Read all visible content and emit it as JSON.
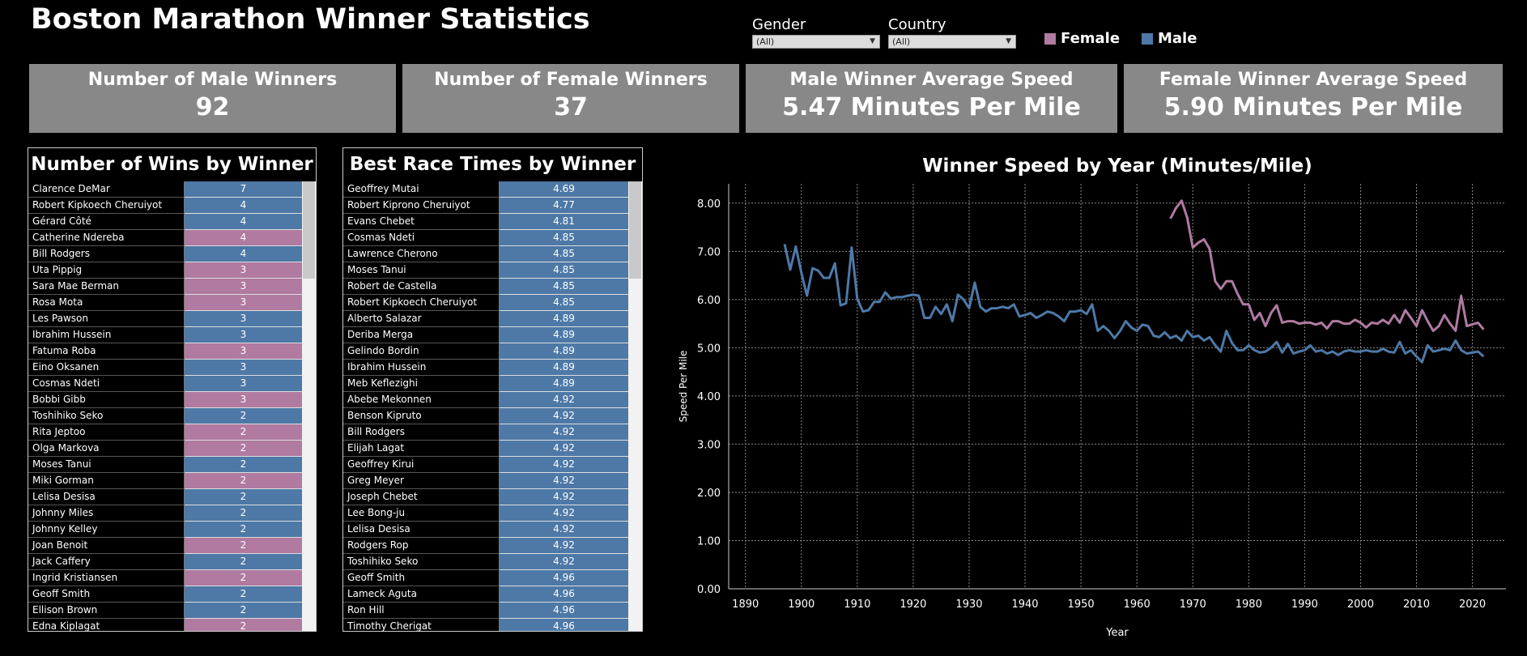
{
  "title": "Boston Marathon Winner Statistics",
  "filters": [
    {
      "label": "Gender",
      "value": "(All)"
    },
    {
      "label": "Country",
      "value": "(All)"
    }
  ],
  "legend": [
    {
      "label": "Female",
      "color": "#b07aa1"
    },
    {
      "label": "Male",
      "color": "#4e79a7"
    }
  ],
  "kpis": [
    {
      "title": "Number of Male Winners",
      "value": "92"
    },
    {
      "title": "Number of Female Winners",
      "value": "37"
    },
    {
      "title": "Male Winner Average Speed",
      "value": "5.47 Minutes Per Mile"
    },
    {
      "title": "Female Winner Average Speed",
      "value": "5.90 Minutes Per Mile"
    }
  ],
  "colors": {
    "male": "#4e79a7",
    "female": "#b07aa1",
    "kpi_bg": "#888888"
  },
  "wins_table": {
    "title": "Number of Wins by Winner",
    "rows": [
      {
        "name": "Clarence DeMar",
        "value": "7",
        "gender": "male"
      },
      {
        "name": "Robert Kipkoech Cheruiyot",
        "value": "4",
        "gender": "male"
      },
      {
        "name": "Gérard Côté",
        "value": "4",
        "gender": "male"
      },
      {
        "name": "Catherine Ndereba",
        "value": "4",
        "gender": "female"
      },
      {
        "name": "Bill Rodgers",
        "value": "4",
        "gender": "male"
      },
      {
        "name": "Uta Pippig",
        "value": "3",
        "gender": "female"
      },
      {
        "name": "Sara Mae Berman",
        "value": "3",
        "gender": "female"
      },
      {
        "name": "Rosa Mota",
        "value": "3",
        "gender": "female"
      },
      {
        "name": "Les Pawson",
        "value": "3",
        "gender": "male"
      },
      {
        "name": "Ibrahim Hussein",
        "value": "3",
        "gender": "male"
      },
      {
        "name": "Fatuma Roba",
        "value": "3",
        "gender": "female"
      },
      {
        "name": "Eino Oksanen",
        "value": "3",
        "gender": "male"
      },
      {
        "name": "Cosmas Ndeti",
        "value": "3",
        "gender": "male"
      },
      {
        "name": "Bobbi Gibb",
        "value": "3",
        "gender": "female"
      },
      {
        "name": "Toshihiko Seko",
        "value": "2",
        "gender": "male"
      },
      {
        "name": "Rita Jeptoo",
        "value": "2",
        "gender": "female"
      },
      {
        "name": "Olga Markova",
        "value": "2",
        "gender": "female"
      },
      {
        "name": "Moses Tanui",
        "value": "2",
        "gender": "male"
      },
      {
        "name": "Miki Gorman",
        "value": "2",
        "gender": "female"
      },
      {
        "name": "Lelisa Desisa",
        "value": "2",
        "gender": "male"
      },
      {
        "name": "Johnny Miles",
        "value": "2",
        "gender": "male"
      },
      {
        "name": "Johnny Kelley",
        "value": "2",
        "gender": "male"
      },
      {
        "name": "Joan Benoit",
        "value": "2",
        "gender": "female"
      },
      {
        "name": "Jack Caffery",
        "value": "2",
        "gender": "male"
      },
      {
        "name": "Ingrid Kristiansen",
        "value": "2",
        "gender": "female"
      },
      {
        "name": "Geoff Smith",
        "value": "2",
        "gender": "male"
      },
      {
        "name": "Ellison Brown",
        "value": "2",
        "gender": "male"
      },
      {
        "name": "Edna Kiplagat",
        "value": "2",
        "gender": "female"
      }
    ]
  },
  "times_table": {
    "title": "Best Race Times by Winner",
    "rows": [
      {
        "name": "Geoffrey Mutai",
        "value": "4.69"
      },
      {
        "name": "Robert Kiprono Cheruiyot",
        "value": "4.77"
      },
      {
        "name": "Evans Chebet",
        "value": "4.81"
      },
      {
        "name": "Cosmas Ndeti",
        "value": "4.85"
      },
      {
        "name": "Lawrence Cherono",
        "value": "4.85"
      },
      {
        "name": "Moses Tanui",
        "value": "4.85"
      },
      {
        "name": "Robert de Castella",
        "value": "4.85"
      },
      {
        "name": "Robert Kipkoech Cheruiyot",
        "value": "4.85"
      },
      {
        "name": "Alberto Salazar",
        "value": "4.89"
      },
      {
        "name": "Deriba Merga",
        "value": "4.89"
      },
      {
        "name": "Gelindo Bordin",
        "value": "4.89"
      },
      {
        "name": "Ibrahim Hussein",
        "value": "4.89"
      },
      {
        "name": "Meb Keflezighi",
        "value": "4.89"
      },
      {
        "name": "Abebe Mekonnen",
        "value": "4.92"
      },
      {
        "name": "Benson Kipruto",
        "value": "4.92"
      },
      {
        "name": "Bill Rodgers",
        "value": "4.92"
      },
      {
        "name": "Elijah Lagat",
        "value": "4.92"
      },
      {
        "name": "Geoffrey Kirui",
        "value": "4.92"
      },
      {
        "name": "Greg Meyer",
        "value": "4.92"
      },
      {
        "name": "Joseph Chebet",
        "value": "4.92"
      },
      {
        "name": "Lee Bong-ju",
        "value": "4.92"
      },
      {
        "name": "Lelisa Desisa",
        "value": "4.92"
      },
      {
        "name": "Rodgers Rop",
        "value": "4.92"
      },
      {
        "name": "Toshihiko Seko",
        "value": "4.92"
      },
      {
        "name": "Geoff Smith",
        "value": "4.96"
      },
      {
        "name": "Lameck Aguta",
        "value": "4.96"
      },
      {
        "name": "Ron Hill",
        "value": "4.96"
      },
      {
        "name": "Timothy Cherigat",
        "value": "4.96"
      }
    ]
  },
  "chart_data": {
    "type": "line",
    "title": "Winner Speed by Year (Minutes/Mile)",
    "xlabel": "Year",
    "ylabel": "Speed Per Mile",
    "xlim": [
      1887,
      2026
    ],
    "ylim": [
      0,
      8.4
    ],
    "x_ticks": [
      "1890",
      "1900",
      "1910",
      "1920",
      "1930",
      "1940",
      "1950",
      "1960",
      "1970",
      "1980",
      "1990",
      "2000",
      "2010",
      "2020"
    ],
    "y_ticks": [
      "0.00",
      "1.00",
      "2.00",
      "3.00",
      "4.00",
      "5.00",
      "6.00",
      "7.00",
      "8.00"
    ],
    "grid": true,
    "series": [
      {
        "name": "Male",
        "color": "#4e79a7",
        "x": [
          1897,
          1898,
          1899,
          1900,
          1901,
          1902,
          1903,
          1904,
          1905,
          1906,
          1907,
          1908,
          1909,
          1910,
          1911,
          1912,
          1913,
          1914,
          1915,
          1916,
          1917,
          1918,
          1919,
          1920,
          1921,
          1922,
          1923,
          1924,
          1925,
          1926,
          1927,
          1928,
          1929,
          1930,
          1931,
          1932,
          1933,
          1934,
          1935,
          1936,
          1937,
          1938,
          1939,
          1940,
          1941,
          1942,
          1943,
          1944,
          1945,
          1946,
          1947,
          1948,
          1949,
          1950,
          1951,
          1952,
          1953,
          1954,
          1955,
          1956,
          1957,
          1958,
          1959,
          1960,
          1961,
          1962,
          1963,
          1964,
          1965,
          1966,
          1967,
          1968,
          1969,
          1970,
          1971,
          1972,
          1973,
          1974,
          1975,
          1976,
          1977,
          1978,
          1979,
          1980,
          1981,
          1982,
          1983,
          1984,
          1985,
          1986,
          1987,
          1988,
          1989,
          1990,
          1991,
          1992,
          1993,
          1994,
          1995,
          1996,
          1997,
          1998,
          1999,
          2000,
          2001,
          2002,
          2003,
          2004,
          2005,
          2006,
          2007,
          2008,
          2009,
          2010,
          2011,
          2012,
          2013,
          2014,
          2015,
          2016,
          2017,
          2018,
          2019,
          2021,
          2022
        ],
        "y": [
          7.15,
          6.62,
          7.1,
          6.55,
          6.08,
          6.65,
          6.6,
          6.45,
          6.45,
          6.75,
          5.88,
          5.92,
          7.08,
          6.02,
          5.75,
          5.78,
          5.95,
          5.95,
          6.15,
          6.02,
          6.05,
          6.05,
          6.08,
          6.1,
          6.08,
          5.62,
          5.62,
          5.85,
          5.7,
          5.9,
          5.55,
          6.1,
          6.0,
          5.82,
          6.35,
          5.85,
          5.75,
          5.82,
          5.82,
          5.85,
          5.82,
          5.9,
          5.65,
          5.68,
          5.72,
          5.62,
          5.68,
          5.75,
          5.72,
          5.65,
          5.55,
          5.75,
          5.75,
          5.78,
          5.7,
          5.9,
          5.35,
          5.45,
          5.35,
          5.2,
          5.35,
          5.55,
          5.42,
          5.35,
          5.48,
          5.45,
          5.25,
          5.22,
          5.32,
          5.2,
          5.25,
          5.15,
          5.35,
          5.22,
          5.25,
          5.15,
          5.22,
          5.05,
          4.92,
          5.35,
          5.1,
          4.95,
          4.95,
          5.05,
          4.95,
          4.9,
          4.92,
          5.0,
          5.12,
          4.9,
          5.08,
          4.88,
          4.92,
          4.95,
          5.05,
          4.92,
          4.95,
          4.88,
          4.92,
          4.85,
          4.92,
          4.95,
          4.92,
          4.92,
          4.95,
          4.92,
          4.92,
          4.98,
          4.92,
          4.9,
          5.12,
          4.88,
          4.95,
          4.82,
          4.7,
          5.05,
          4.92,
          4.95,
          4.98,
          4.95,
          5.15,
          4.95,
          4.88,
          4.92,
          4.82
        ]
      },
      {
        "name": "Female",
        "color": "#b07aa1",
        "x": [
          1966,
          1967,
          1968,
          1969,
          1970,
          1971,
          1972,
          1973,
          1974,
          1975,
          1976,
          1977,
          1978,
          1979,
          1980,
          1981,
          1982,
          1983,
          1984,
          1985,
          1986,
          1987,
          1988,
          1989,
          1990,
          1991,
          1992,
          1993,
          1994,
          1995,
          1996,
          1997,
          1998,
          1999,
          2000,
          2001,
          2002,
          2003,
          2004,
          2005,
          2006,
          2007,
          2008,
          2009,
          2010,
          2011,
          2012,
          2013,
          2014,
          2015,
          2016,
          2017,
          2018,
          2019,
          2021,
          2022
        ],
        "y": [
          7.68,
          7.9,
          8.05,
          7.7,
          7.08,
          7.18,
          7.25,
          7.05,
          6.38,
          6.22,
          6.38,
          6.38,
          6.12,
          5.9,
          5.9,
          5.58,
          5.72,
          5.45,
          5.72,
          5.88,
          5.52,
          5.55,
          5.55,
          5.5,
          5.52,
          5.52,
          5.48,
          5.52,
          5.4,
          5.55,
          5.55,
          5.5,
          5.5,
          5.58,
          5.52,
          5.42,
          5.52,
          5.5,
          5.58,
          5.5,
          5.68,
          5.52,
          5.78,
          5.62,
          5.45,
          5.78,
          5.55,
          5.35,
          5.45,
          5.68,
          5.5,
          5.35,
          6.08,
          5.45,
          5.52,
          5.38
        ]
      }
    ]
  }
}
